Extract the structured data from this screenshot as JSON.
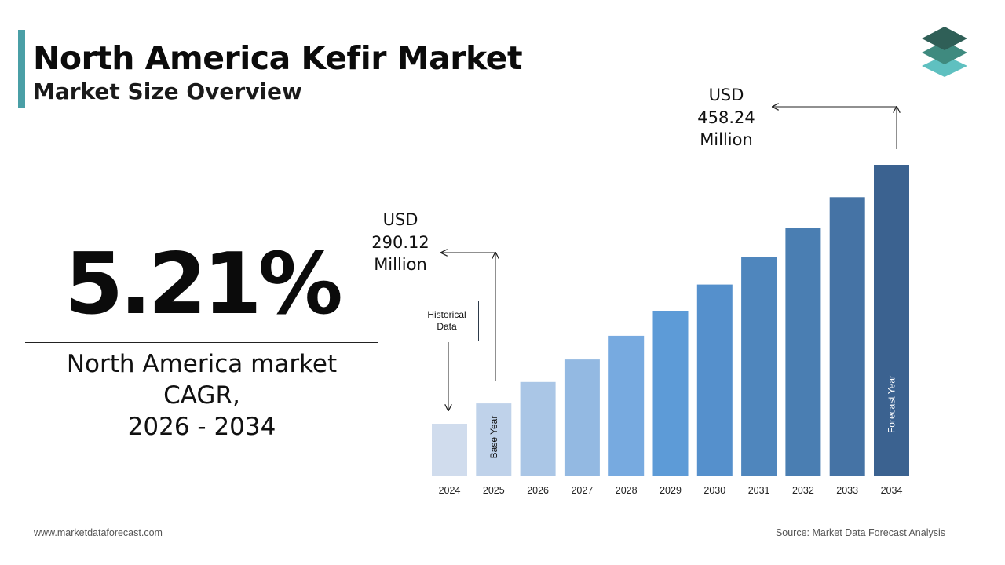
{
  "header": {
    "title": "North America Kefir Market",
    "subtitle": "Market Size Overview"
  },
  "summary": {
    "cagr_value": "5.21%",
    "cagr_label_line1": "North America market",
    "cagr_label_line2": "CAGR,",
    "cagr_label_line3": "2026 - 2034"
  },
  "callouts": {
    "start": {
      "line1": "USD",
      "line2": "290.12",
      "line3": "Million"
    },
    "end": {
      "line1": "USD",
      "line2": "458.24",
      "line3": "Million"
    },
    "historical_line1": "Historical",
    "historical_line2": "Data"
  },
  "footer": {
    "website": "www.marketdataforecast.com",
    "source": "Source: Market Data Forecast Analysis"
  },
  "colors": {
    "accent": "#4a9fa6",
    "logo_dark": "#2f5f57",
    "logo_mid": "#3f8a7f",
    "logo_light": "#5fc0c0"
  },
  "chart_data": {
    "type": "bar",
    "categories": [
      "2024",
      "2025",
      "2026",
      "2027",
      "2028",
      "2029",
      "2030",
      "2031",
      "2032",
      "2033",
      "2034"
    ],
    "values": [
      275.8,
      290.12,
      305.2,
      321.1,
      337.8,
      355.4,
      373.9,
      393.4,
      413.9,
      435.4,
      458.24
    ],
    "colors": [
      "#d0dced",
      "#bfd2ea",
      "#aac6e6",
      "#93b9e2",
      "#77aae0",
      "#5d9bd7",
      "#5590cc",
      "#4f86bd",
      "#4a7eb2",
      "#4573a5",
      "#3b6290"
    ],
    "bar_annotations": {
      "2025": "Base Year",
      "2034": "Forecast Year"
    },
    "ylim": [
      0,
      480
    ],
    "grid": false,
    "legend": "none"
  }
}
